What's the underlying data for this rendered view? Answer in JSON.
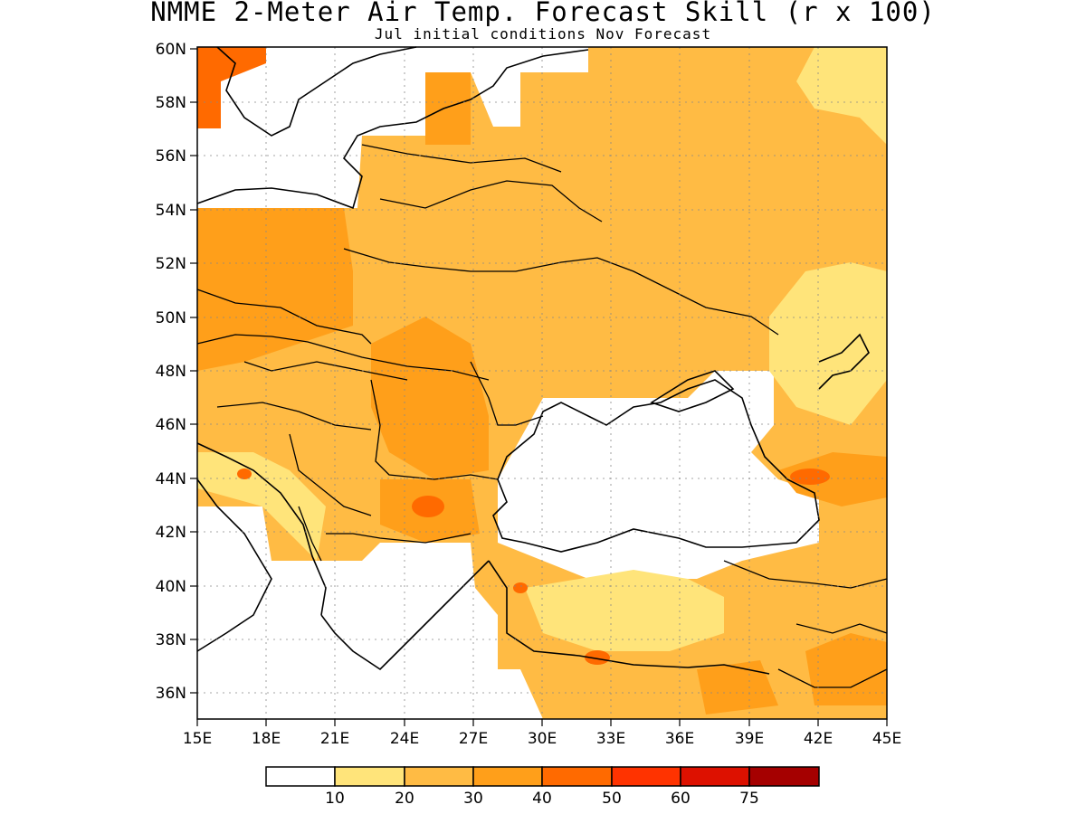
{
  "title": "NMME 2-Meter Air Temp. Forecast Skill (r x 100)",
  "subtitle": "Jul initial conditions  Nov Forecast",
  "lat_labels": [
    "60N",
    "58N",
    "56N",
    "54N",
    "52N",
    "50N",
    "48N",
    "46N",
    "44N",
    "42N",
    "40N",
    "38N",
    "36N"
  ],
  "lon_labels": [
    "15E",
    "18E",
    "21E",
    "24E",
    "27E",
    "30E",
    "33E",
    "36E",
    "39E",
    "42E",
    "45E"
  ],
  "legend": {
    "labels": [
      "10",
      "20",
      "30",
      "40",
      "50",
      "60",
      "75"
    ],
    "colors": [
      "#ffffff",
      "#ffe47a",
      "#ffbb44",
      "#ff9f1a",
      "#ff6a00",
      "#ff3300",
      "#dd1100",
      "#a50000"
    ]
  },
  "map": {
    "lon_range": [
      15,
      45
    ],
    "lat_range": [
      35,
      60
    ],
    "grid": "dotted",
    "regions": [
      {
        "name": "ocean/no-data",
        "category": 0
      },
      {
        "name": "interior-plain",
        "category": 2
      },
      {
        "name": "central-europe",
        "category": 3
      },
      {
        "name": "bulgaria-hotspot",
        "category": 4
      },
      {
        "name": "caucasus-hotspot",
        "category": 4
      }
    ]
  }
}
